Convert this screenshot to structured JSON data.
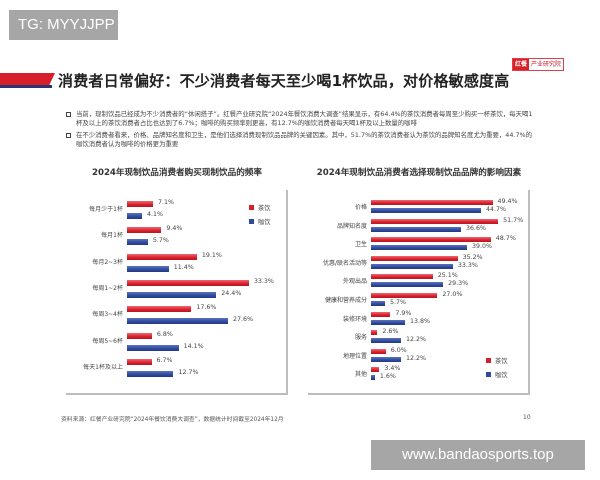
{
  "watermarks": {
    "tag": "TG: MYYJJPP",
    "url": "www.bandaosports.top"
  },
  "brand": {
    "part1": "红餐",
    "part2": "产业研究院"
  },
  "page_title": "消费者日常偏好：不少消费者每天至少喝1杯饮品，对价格敏感度高",
  "bullets": [
    "当前，现制饮品已经成为不少消费者的“休闲搭子”。红餐产业研究院“2024年餐饮消费大调查”结果显示，有64.4%的茶饮消费者每周至少购买一杯茶饮，每天喝1杯及以上的茶饮消费者占比也达到了6.7%；咖啡的购买频率则更高，有12.7%的咖饮消费者每天喝1杯及以上数量的咖啡",
    "在不少消费者看来，价格、品牌知名度和卫生，是他们选择消费现制饮品品牌的关键因素。其中，51.7%的茶饮消费者认为茶饮的品牌知名度尤为重要，44.7%的咖饮消费者认为咖啡的价格更为重要"
  ],
  "colors": {
    "tea": "#d81e2b",
    "coffee": "#2f4a9c"
  },
  "chart_data": [
    {
      "type": "bar",
      "orientation": "horizontal",
      "title": "2024年现制饮品消费者购买现制饮品的频率",
      "categories": [
        "每月少于1杯",
        "每月1杯",
        "每月2~3杯",
        "每周1~2杯",
        "每周3~4杯",
        "每周5~6杯",
        "每天1杯及以上"
      ],
      "series": [
        {
          "name": "茶饮",
          "values": [
            7.1,
            9.4,
            19.1,
            33.3,
            17.6,
            6.8,
            6.7
          ],
          "labels": [
            "7.1%",
            "9.4%",
            "19.1%",
            "33.3%",
            "17.6%",
            "6.8%",
            "6.7%"
          ]
        },
        {
          "name": "咖饮",
          "values": [
            4.1,
            5.7,
            11.4,
            24.4,
            27.6,
            14.1,
            12.7
          ],
          "labels": [
            "4.1%",
            "5.7%",
            "11.4%",
            "24.4%",
            "27.6%",
            "14.1%",
            "12.7%"
          ]
        }
      ],
      "xlabel": "",
      "ylabel": "",
      "grid": false,
      "legend_position": "top-right"
    },
    {
      "type": "bar",
      "orientation": "horizontal",
      "title": "2024年现制饮品消费者选择现制饮品品牌的影响因素",
      "categories": [
        "价格",
        "品牌知名度",
        "卫生",
        "优惠/联名活动等",
        "外观出品",
        "健康和营养成分",
        "装修环境",
        "服务",
        "地理位置",
        "其他"
      ],
      "series": [
        {
          "name": "茶饮",
          "values": [
            49.4,
            51.7,
            48.7,
            35.2,
            25.1,
            27.0,
            7.9,
            2.6,
            6.0,
            3.4
          ],
          "labels": [
            "49.4%",
            "51.7%",
            "48.7%",
            "35.2%",
            "25.1%",
            "27.0%",
            "7.9%",
            "2.6%",
            "6.0%",
            "3.4%"
          ]
        },
        {
          "name": "咖饮",
          "values": [
            44.7,
            36.6,
            39.0,
            33.3,
            29.3,
            5.7,
            13.8,
            12.2,
            12.2,
            1.6
          ],
          "labels": [
            "44.7%",
            "36.6%",
            "39.0%",
            "33.3%",
            "29.3%",
            "5.7%",
            "13.8%",
            "12.2%",
            "12.2%",
            "1.6%"
          ]
        }
      ],
      "xlabel": "",
      "ylabel": "",
      "grid": false,
      "legend_position": "bottom-right"
    }
  ],
  "footer": {
    "source": "资料来源：红餐产业研究院“2024年餐饮消费大调查”，数据统计时间截至2024年12月",
    "page": "10"
  }
}
